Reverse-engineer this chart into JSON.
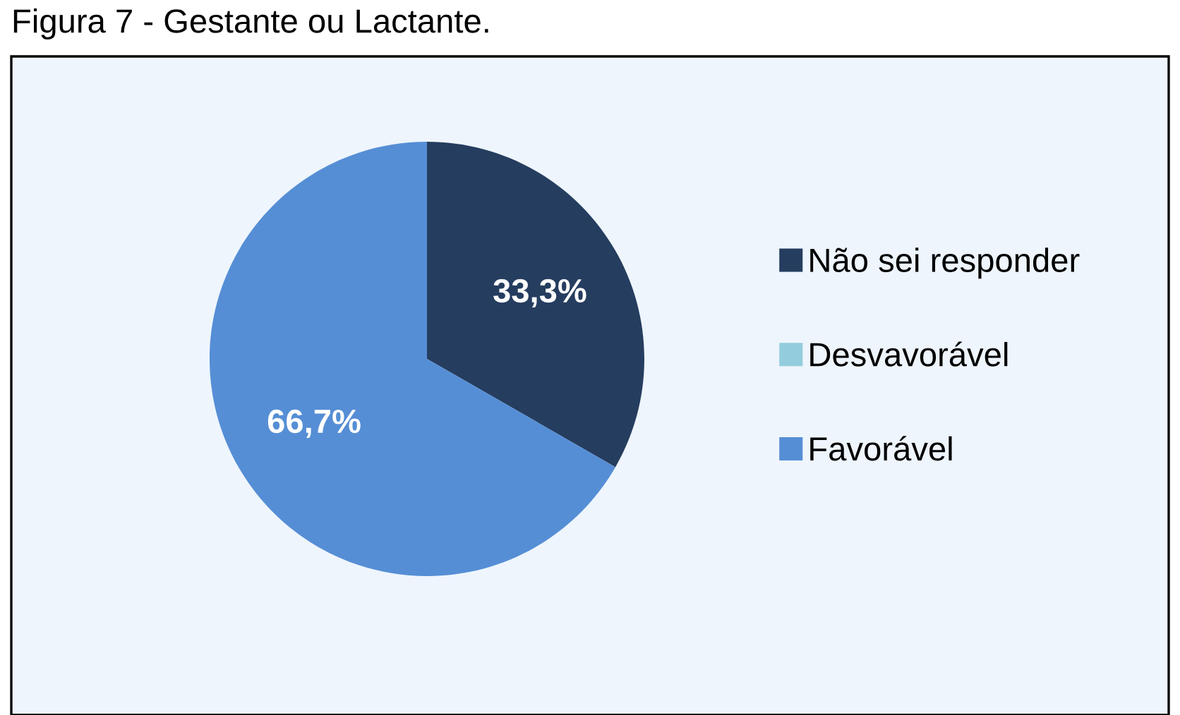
{
  "chart_data": {
    "type": "pie",
    "title": "Figura 7 - Gestante ou Lactante.",
    "categories": [
      "Não sei responder",
      "Desvavorável",
      "Favorável"
    ],
    "values": [
      33.3,
      0,
      66.7
    ],
    "colors": [
      "#253d5f",
      "#93cddd",
      "#558ed5"
    ],
    "value_labels": [
      "33,3%",
      null,
      "66,7%"
    ],
    "legend": "right"
  }
}
